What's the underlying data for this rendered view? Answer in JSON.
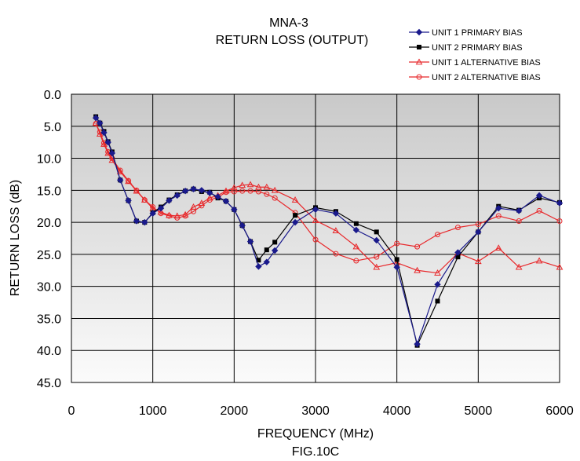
{
  "chart_data": {
    "type": "line",
    "title": "MNA-3",
    "subtitle": "RETURN LOSS (OUTPUT)",
    "xlabel": "FREQUENCY (MHz)",
    "ylabel": "RETURN LOSS (dB)",
    "caption": "FIG.10C",
    "xlim": [
      0,
      6000
    ],
    "ylim": [
      0,
      45
    ],
    "y_inverted": true,
    "x_ticks": [
      "0",
      "1000",
      "2000",
      "3000",
      "4000",
      "5000",
      "6000"
    ],
    "y_ticks": [
      "0.0",
      "5.0",
      "10.0",
      "15.0",
      "20.0",
      "25.0",
      "30.0",
      "35.0",
      "40.0",
      "45.0"
    ],
    "grid": true,
    "legend_position": "top-right",
    "series": [
      {
        "name": "UNIT 1 PRIMARY BIAS",
        "color": "#1a1a8c",
        "marker": "diamond",
        "x": [
          300,
          350,
          400,
          450,
          500,
          600,
          700,
          800,
          900,
          1000,
          1100,
          1200,
          1300,
          1400,
          1500,
          1600,
          1700,
          1800,
          1900,
          2000,
          2100,
          2200,
          2300,
          2400,
          2500,
          2750,
          3000,
          3250,
          3500,
          3750,
          4000,
          4250,
          4500,
          4750,
          5000,
          5250,
          5500,
          5750,
          6000
        ],
        "y": [
          3.7,
          4.5,
          6.0,
          7.5,
          9.2,
          13.4,
          16.6,
          19.8,
          20.0,
          18.6,
          17.8,
          16.6,
          15.8,
          15.1,
          14.8,
          15.0,
          15.4,
          16.0,
          16.7,
          18.0,
          20.5,
          23.0,
          26.9,
          26.2,
          24.4,
          20.0,
          18.0,
          18.6,
          21.2,
          22.8,
          27.0,
          39.0,
          29.7,
          24.7,
          21.5,
          17.8,
          18.2,
          15.8,
          17.0
        ]
      },
      {
        "name": "UNIT 2 PRIMARY BIAS",
        "color": "#000000",
        "marker": "square",
        "x": [
          300,
          350,
          400,
          450,
          500,
          600,
          700,
          800,
          900,
          1000,
          1100,
          1200,
          1300,
          1400,
          1500,
          1600,
          1700,
          1800,
          1900,
          2000,
          2100,
          2200,
          2300,
          2400,
          2500,
          2750,
          3000,
          3250,
          3500,
          3750,
          4000,
          4250,
          4500,
          4750,
          5000,
          5250,
          5500,
          5750,
          6000
        ],
        "y": [
          3.5,
          4.5,
          5.8,
          7.4,
          9.0,
          13.4,
          16.6,
          19.8,
          20.0,
          18.5,
          17.6,
          16.5,
          15.7,
          15.1,
          14.8,
          15.2,
          15.3,
          16.2,
          16.7,
          18.0,
          20.5,
          23.0,
          25.9,
          24.3,
          23.1,
          18.9,
          17.7,
          18.3,
          20.2,
          21.5,
          25.8,
          39.2,
          32.3,
          25.4,
          21.5,
          17.5,
          18.1,
          16.2,
          16.9
        ]
      },
      {
        "name": "UNIT 1 ALTERNATIVE BIAS",
        "color": "#e8282b",
        "marker": "triangle",
        "x": [
          300,
          350,
          400,
          450,
          500,
          600,
          700,
          800,
          900,
          1000,
          1100,
          1200,
          1300,
          1400,
          1500,
          1600,
          1700,
          1800,
          1900,
          2000,
          2100,
          2200,
          2300,
          2400,
          2500,
          2750,
          3000,
          3250,
          3500,
          3750,
          4000,
          4250,
          4500,
          4750,
          5000,
          5250,
          5500,
          5750,
          6000
        ],
        "y": [
          4.5,
          6.2,
          7.8,
          9.2,
          10.3,
          12.1,
          13.6,
          15.1,
          16.5,
          17.8,
          18.4,
          18.9,
          19.0,
          18.8,
          17.6,
          17.0,
          16.2,
          15.8,
          15.1,
          14.6,
          14.2,
          14.1,
          14.5,
          14.5,
          15.0,
          16.5,
          19.7,
          21.3,
          23.8,
          27.0,
          26.3,
          27.5,
          27.9,
          24.8,
          26.1,
          24.0,
          27.0,
          26.0,
          27.0
        ]
      },
      {
        "name": "UNIT 2 ALTERNATIVE BIAS",
        "color": "#e8282b",
        "marker": "circle",
        "x": [
          300,
          350,
          400,
          450,
          500,
          600,
          700,
          800,
          900,
          1000,
          1100,
          1200,
          1300,
          1400,
          1500,
          1600,
          1700,
          1800,
          1900,
          2000,
          2100,
          2200,
          2300,
          2400,
          2500,
          2750,
          3000,
          3250,
          3500,
          3750,
          4000,
          4250,
          4500,
          4750,
          5000,
          5250,
          5500,
          5750,
          6000
        ],
        "y": [
          4.6,
          5.9,
          7.6,
          9.0,
          10.0,
          11.9,
          13.5,
          15.0,
          16.5,
          17.6,
          18.6,
          19.0,
          19.3,
          19.0,
          18.3,
          17.4,
          16.5,
          16.1,
          15.3,
          15.2,
          15.1,
          15.1,
          15.2,
          15.6,
          16.2,
          18.5,
          22.7,
          24.9,
          26.0,
          25.4,
          23.3,
          23.8,
          21.9,
          20.8,
          20.3,
          19.0,
          19.8,
          18.2,
          19.8
        ]
      }
    ]
  }
}
